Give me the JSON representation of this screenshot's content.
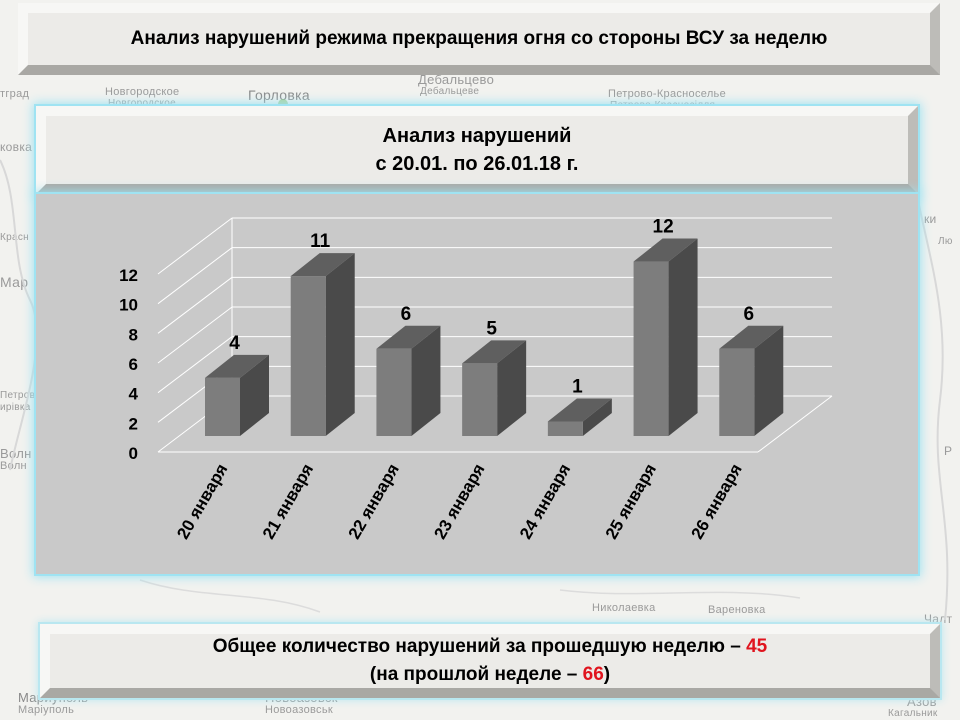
{
  "header": {
    "title": "Анализ нарушений режима прекращения огня со стороны ВСУ за неделю"
  },
  "subtitle": {
    "line1": "Анализ нарушений",
    "line2": "с 20.01. по 26.01.18 г."
  },
  "summary": {
    "line1_text": "Общее количество нарушений за прошедшую неделю – ",
    "line1_value": "45",
    "line2_prefix": "(на прошлой неделе – ",
    "line2_value": "66",
    "line2_suffix": ")"
  },
  "map_labels": {
    "a": "тград",
    "b": "Новгородское",
    "c": "Новгородское",
    "d": "Горловка",
    "e": "Дебальцево",
    "f": "Дебальцеве",
    "g": "Петрово-Красноселье",
    "h": "Петрово-Красносiлля",
    "i": "ковка",
    "j": "Красн",
    "k": "Мар",
    "l": "Петровс",
    "m": "ирівка",
    "n": "Волн",
    "o": "Волн",
    "p": "Новоазовск",
    "q": "Новоазовськ",
    "r": "Мариуполь",
    "s": "Марiуполь",
    "t": "Николаевка",
    "u": "Вареновка",
    "v": "Азов",
    "w": "Чалт",
    "x": "Кагальник",
    "y": "ки",
    "z": "Лю",
    "aa": "Р"
  },
  "chart_data": {
    "type": "bar",
    "title": "",
    "xlabel": "",
    "ylabel": "",
    "categories": [
      "20 января",
      "21 января",
      "22 января",
      "23 января",
      "24 января",
      "25 января",
      "26 января"
    ],
    "values": [
      4,
      11,
      6,
      5,
      1,
      12,
      6
    ],
    "yticks": [
      "0",
      "2",
      "4",
      "6",
      "8",
      "10",
      "12"
    ],
    "ylim": [
      0,
      12
    ],
    "grid": true,
    "legend": "none",
    "colors": {
      "front": "#7d7d7d",
      "top": "#5f5f5f",
      "side": "#4a4a4a"
    }
  }
}
